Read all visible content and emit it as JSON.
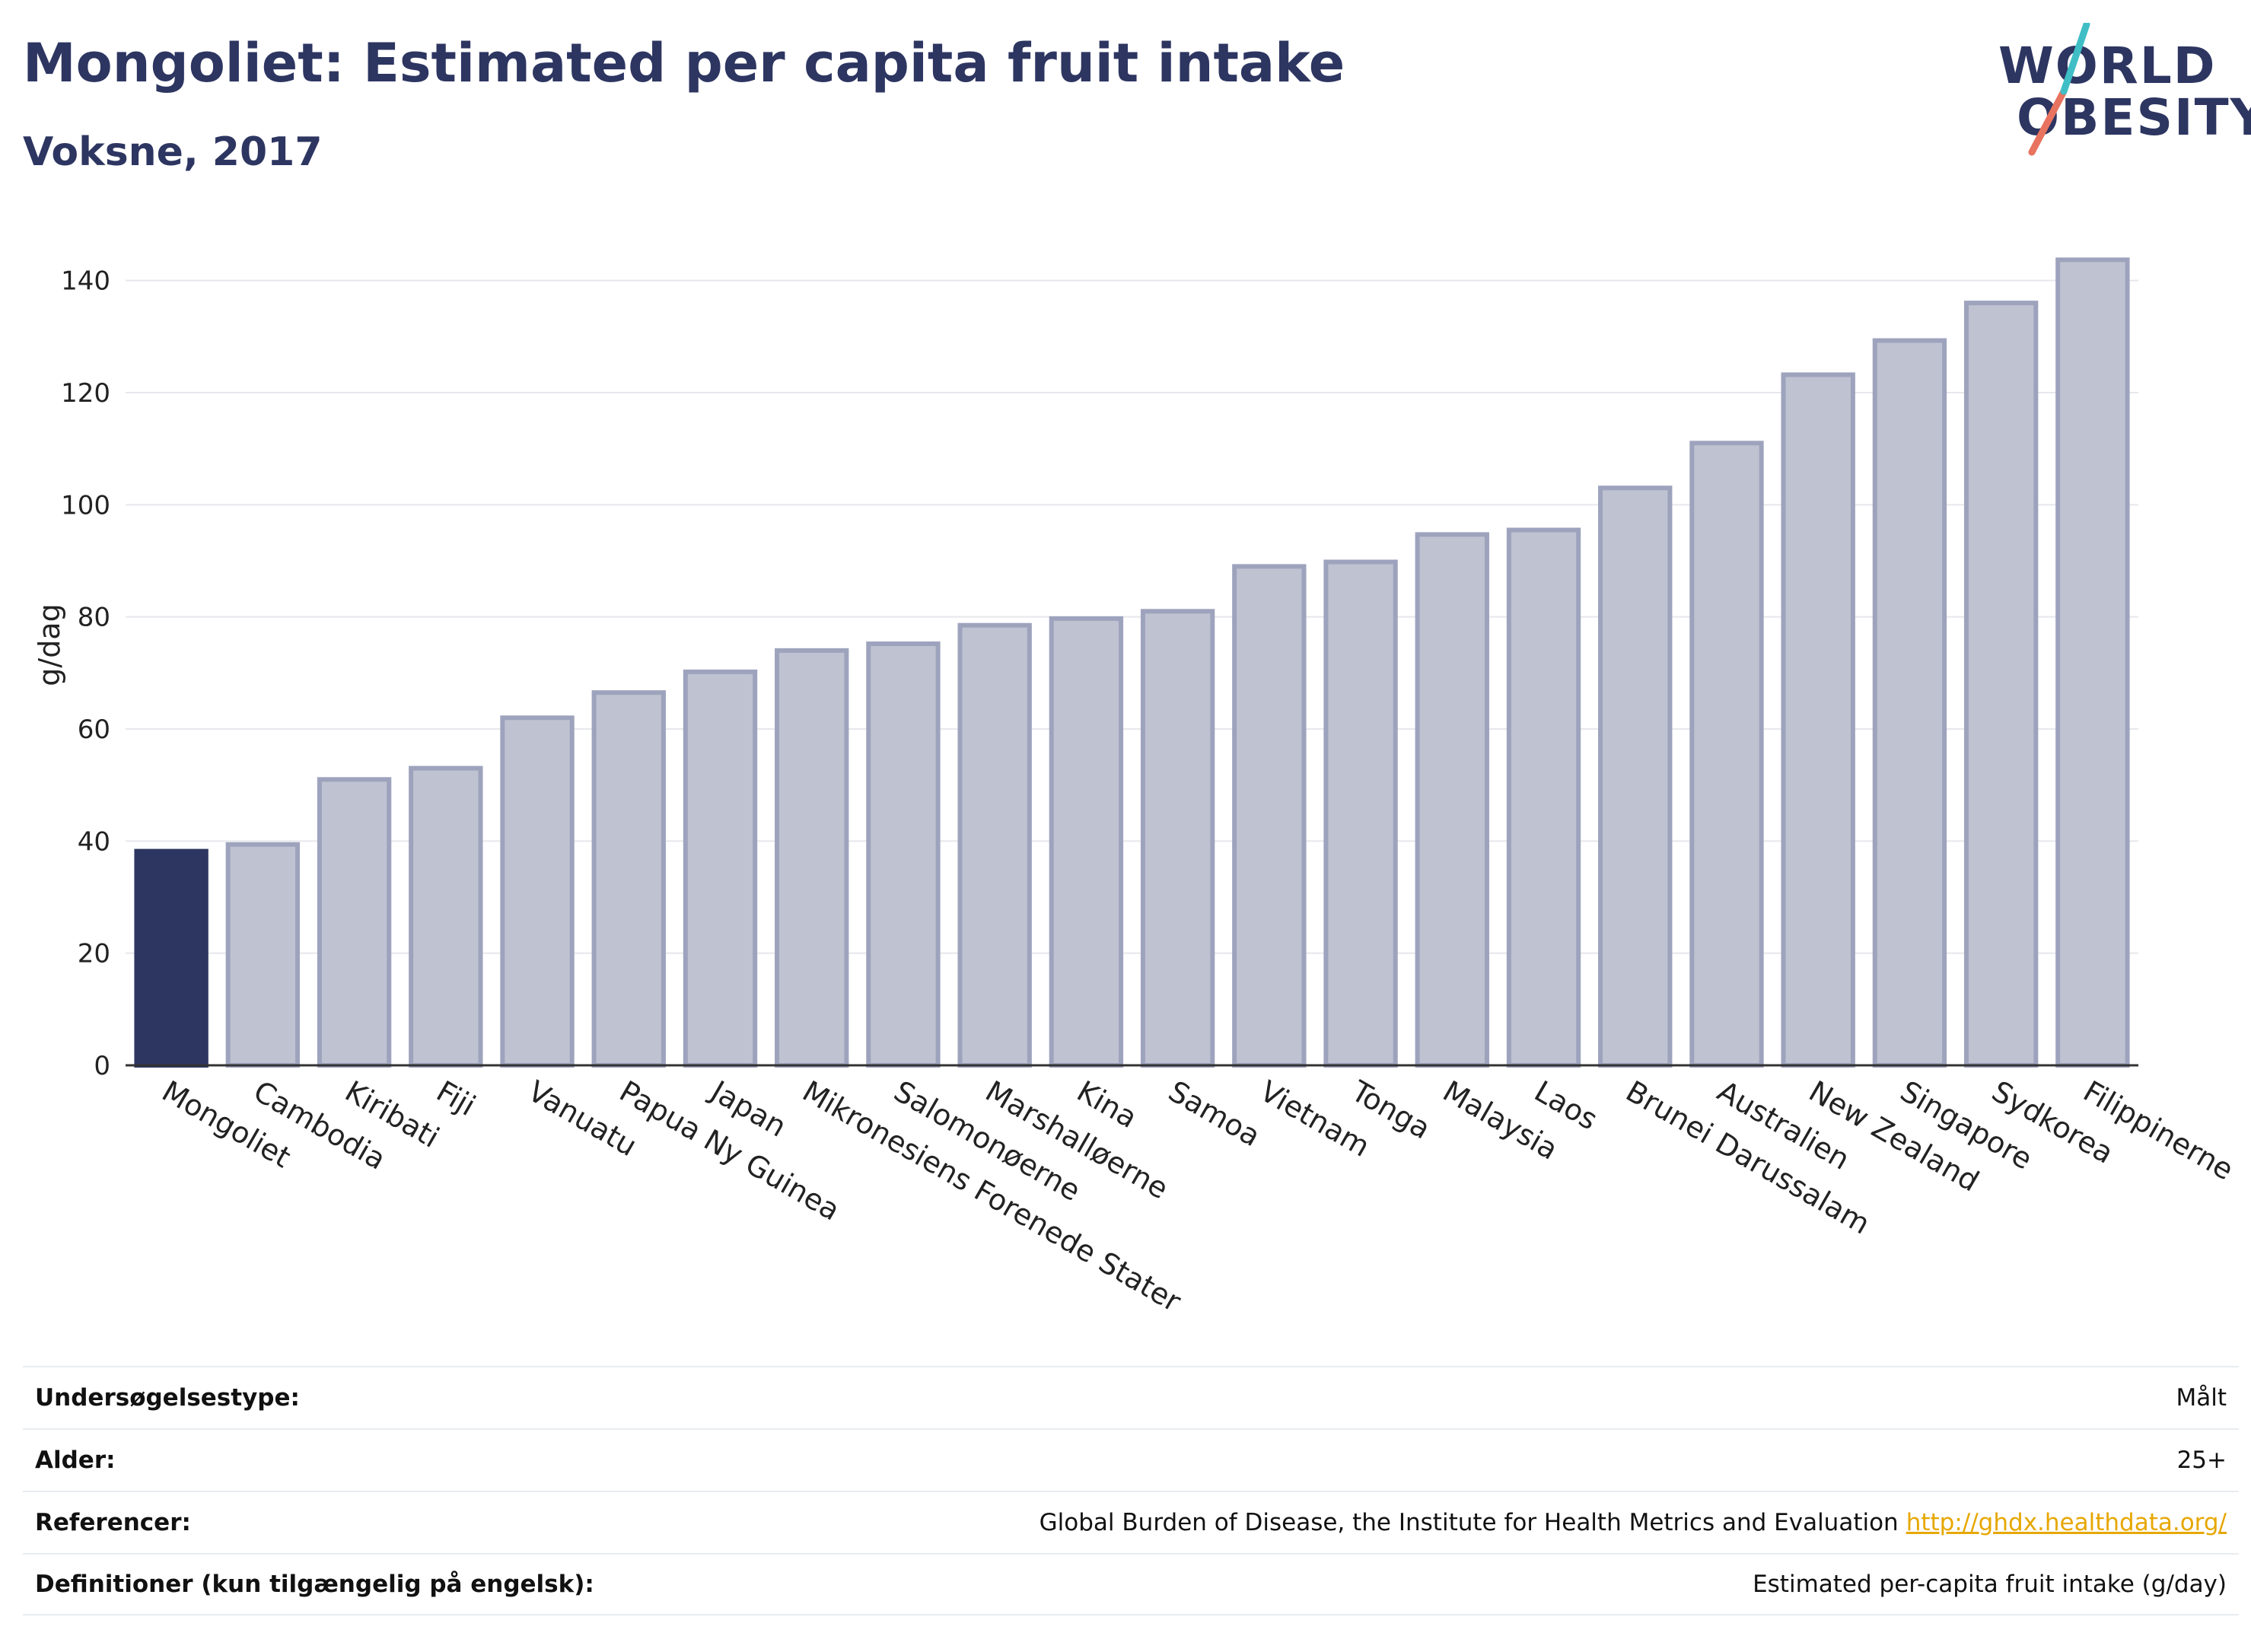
{
  "header": {
    "title": "Mongoliet: Estimated per capita fruit intake",
    "subtitle": "Voksne, 2017"
  },
  "logo": {
    "line1": "WORLD",
    "line2": "OBESITY",
    "slash_colors": [
      "#e8735f",
      "#3fbfc5"
    ]
  },
  "colors": {
    "highlight": "#2d3561",
    "bar_fill": "#bfc2d1",
    "bar_stroke": "#9ea3bd"
  },
  "chart_data": {
    "type": "bar",
    "categories": [
      "Mongoliet",
      "Cambodia",
      "Kiribati",
      "Fiji",
      "Vanuatu",
      "Papua Ny Guinea",
      "Japan",
      "Mikronesiens Forenede Stater",
      "Salomonøerne",
      "Marshalløerne",
      "Kina",
      "Samoa",
      "Vietnam",
      "Tonga",
      "Malaysia",
      "Laos",
      "Brunei Darussalam",
      "Australien",
      "New Zealand",
      "Singapore",
      "Sydkorea",
      "Filippinerne"
    ],
    "values": [
      38.2,
      39.4,
      51,
      53,
      62,
      66.5,
      70.2,
      74,
      75.2,
      78.5,
      79.7,
      81,
      89,
      89.8,
      94.7,
      95.5,
      103,
      111,
      123.2,
      129.3,
      136,
      143.7
    ],
    "highlight_index": 0,
    "title": "Mongoliet: Estimated per capita fruit intake",
    "subtitle": "Voksne, 2017",
    "xlabel": "",
    "ylabel": "g/dag",
    "ylim": [
      0,
      150
    ],
    "yticks": [
      0,
      20,
      40,
      60,
      80,
      100,
      120,
      140
    ],
    "grid": true,
    "legend": "none"
  },
  "info": {
    "rows": [
      {
        "label": "Undersøgelsestype:",
        "value": "Målt"
      },
      {
        "label": "Alder:",
        "value": "25+"
      },
      {
        "label": "Referencer:",
        "value": "Global Burden of Disease, the Institute for Health Metrics and Evaluation",
        "link": "http://ghdx.healthdata.org/"
      },
      {
        "label": "Definitioner (kun tilgængelig på engelsk):",
        "value": "Estimated per-capita fruit intake (g/day)"
      }
    ]
  }
}
